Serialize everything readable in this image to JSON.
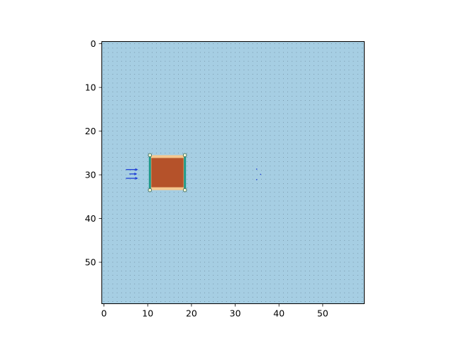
{
  "figure": {
    "type": "imshow",
    "background_color": "#ffffff",
    "field_color": "#a6cee3",
    "accent_colors": {
      "block_fill": "#b5522a",
      "block_edge": "#1f9a8a",
      "block_trim": "#f5c890",
      "flow_arrows": "#1f3fd6",
      "grid_dots": "#2b3a4a"
    }
  },
  "chart_data": {
    "type": "heatmap",
    "title": "",
    "xlabel": "",
    "ylabel": "",
    "xlim": [
      -0.5,
      59.5
    ],
    "ylim": [
      59.5,
      -0.5
    ],
    "x_ticks": [
      0,
      10,
      20,
      30,
      40,
      50
    ],
    "y_ticks": [
      0,
      10,
      20,
      30,
      40,
      50
    ],
    "x_tick_labels": [
      "0",
      "10",
      "20",
      "30",
      "40",
      "50"
    ],
    "y_tick_labels": [
      "0",
      "10",
      "20",
      "30",
      "40",
      "50"
    ],
    "grid_dots_spacing": 1,
    "block": {
      "x_range": [
        10.5,
        18.5
      ],
      "y_range": [
        25.5,
        33.5
      ],
      "label": ""
    },
    "arrows": [
      {
        "x": 5,
        "y": 28.8,
        "dx": 2.8,
        "dy": 0
      },
      {
        "x": 5.8,
        "y": 29.8,
        "dx": 1.8,
        "dy": 0
      },
      {
        "x": 5,
        "y": 30.8,
        "dx": 2.8,
        "dy": 0
      }
    ],
    "specks": [
      {
        "x": 34.9,
        "y": 28.7
      },
      {
        "x": 35.8,
        "y": 29.9
      },
      {
        "x": 34.9,
        "y": 31.1
      }
    ]
  }
}
